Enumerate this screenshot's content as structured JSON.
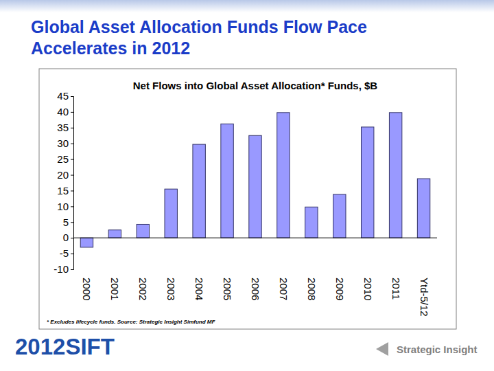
{
  "slide": {
    "title": [
      "Global Asset Allocation Funds Flow Pace",
      "Accelerates in 2012"
    ],
    "logo": "2012SIFT",
    "brand": "Strategic Insight"
  },
  "chart_data": {
    "type": "bar",
    "title": "Net Flows into Global Asset Allocation* Funds, $B",
    "categories": [
      "2000",
      "2001",
      "2002",
      "2003",
      "2004",
      "2005",
      "2006",
      "2007",
      "2008",
      "2009",
      "2010",
      "2011",
      "Ytd-5/12"
    ],
    "values": [
      -3,
      2.5,
      4.3,
      15.5,
      29.7,
      36.2,
      32.5,
      39.8,
      9.8,
      13.8,
      35.2,
      39.8,
      18.8
    ],
    "color": "#9999ff",
    "ylim": [
      -10,
      45
    ],
    "yticks": [
      -10,
      -5,
      0,
      5,
      10,
      15,
      20,
      25,
      30,
      35,
      40,
      45
    ],
    "grid": false,
    "annotations": [
      "* Excludes lifecycle funds. Source: Strategic Insight Simfund MF"
    ]
  }
}
